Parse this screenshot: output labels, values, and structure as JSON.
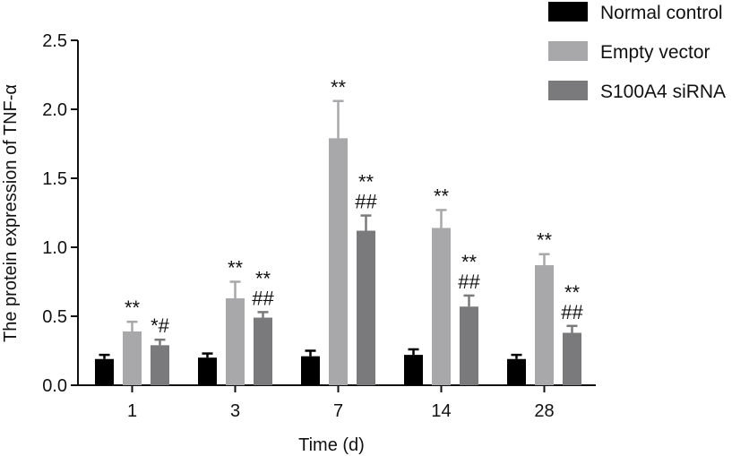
{
  "chart_data": {
    "type": "bar",
    "xlabel": "Time (d)",
    "ylabel": "The protein expression of TNF-α",
    "ylim": [
      0,
      2.5
    ],
    "yticks": [
      "0.0",
      "0.5",
      "1.0",
      "1.5",
      "2.0",
      "2.5"
    ],
    "categories": [
      "1",
      "3",
      "7",
      "14",
      "28"
    ],
    "legend_position": "top-right",
    "grid": false,
    "series": [
      {
        "name": "Normal control",
        "color": "#000000",
        "values": [
          0.19,
          0.2,
          0.21,
          0.22,
          0.19
        ],
        "errors": [
          0.03,
          0.03,
          0.04,
          0.04,
          0.03
        ],
        "annotations": [
          "",
          "",
          "",
          "",
          ""
        ]
      },
      {
        "name": "Empty vector",
        "color": "#a8a8ab",
        "values": [
          0.39,
          0.63,
          1.79,
          1.14,
          0.87
        ],
        "errors": [
          0.07,
          0.12,
          0.27,
          0.13,
          0.08
        ],
        "annotations": [
          "**",
          "**",
          "**",
          "**",
          "**"
        ]
      },
      {
        "name": "S100A4 siRNA",
        "color": "#7a7a7c",
        "values": [
          0.29,
          0.49,
          1.12,
          0.57,
          0.38
        ],
        "errors": [
          0.04,
          0.04,
          0.11,
          0.08,
          0.05
        ],
        "annotations": [
          "*#",
          "**|##",
          "**|##",
          "**|##",
          "**|##"
        ]
      }
    ]
  }
}
